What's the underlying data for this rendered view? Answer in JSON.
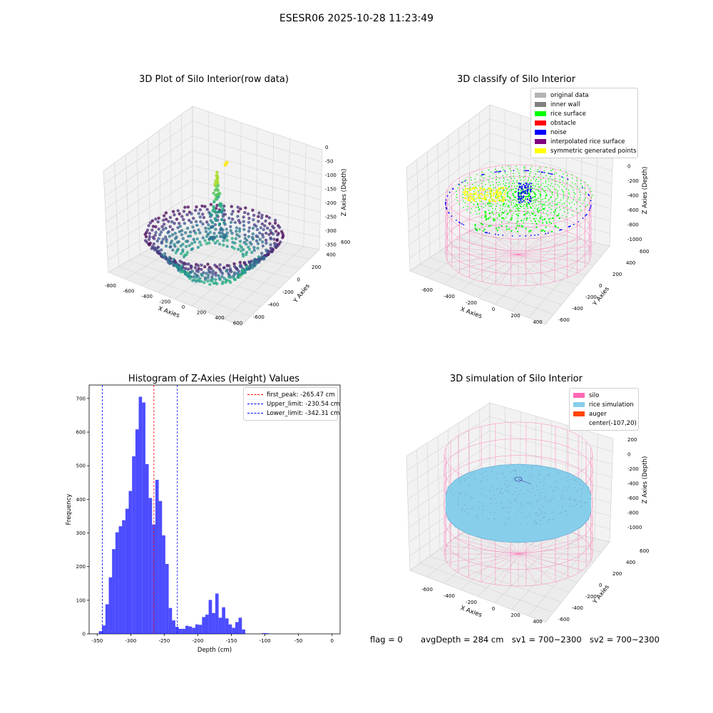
{
  "suptitle": "ESESR06 2025-10-28 11:23:49",
  "panels": {
    "raw": {
      "title": "3D Plot of Silo Interior(row data)",
      "xlabel": "X Axies",
      "ylabel": "Y Axies",
      "zlabel": "Z Axies (Depth)",
      "xticks": [
        "-800",
        "-600",
        "-400",
        "-200",
        "0",
        "200",
        "400",
        "600"
      ],
      "yticks": [
        "-600",
        "-400",
        "-200",
        "0",
        "200",
        "400",
        "600"
      ],
      "zticks": [
        "0",
        "-50",
        "-100",
        "-150",
        "-200",
        "-250",
        "-300",
        "-350"
      ]
    },
    "classify": {
      "title": "3D classify of Silo Interior",
      "xlabel": "X Axies",
      "ylabel": "Y Axies",
      "zlabel": "Z Axies (Depth)",
      "xticks": [
        "-600",
        "-400",
        "-200",
        "0",
        "200",
        "400"
      ],
      "yticks": [
        "-600",
        "-400",
        "-200",
        "0",
        "200",
        "400",
        "600"
      ],
      "zticks": [
        "200",
        "0",
        "-200",
        "-400",
        "-600",
        "-800",
        "-1000"
      ],
      "legend": [
        {
          "label": "original data",
          "color": "#b3b3b3"
        },
        {
          "label": "inner wall",
          "color": "#808080"
        },
        {
          "label": "rice surface",
          "color": "#00ff00"
        },
        {
          "label": "obstacle",
          "color": "#ff0000"
        },
        {
          "label": "noise",
          "color": "#0000ff"
        },
        {
          "label": "interpolated rice surface",
          "color": "#800080"
        },
        {
          "label": "symmetric generated points",
          "color": "#ffff00"
        }
      ]
    },
    "simulation": {
      "title": "3D simulation of Silo Interior",
      "xlabel": "X Axies",
      "ylabel": "Y Axies",
      "zlabel": "Z Axies (Depth)",
      "xticks": [
        "-600",
        "-400",
        "-200",
        "0",
        "200",
        "400"
      ],
      "yticks": [
        "-600",
        "-400",
        "-200",
        "0",
        "200",
        "400",
        "600"
      ],
      "zticks": [
        "200",
        "0",
        "-200",
        "-400",
        "-600",
        "-800",
        "-1000"
      ],
      "legend": [
        {
          "label": "silo",
          "color": "#ff69b4"
        },
        {
          "label": "rice simulation",
          "color": "#87ceeb"
        },
        {
          "label": "auger",
          "color": "#ff4500"
        },
        {
          "label": "center(-107,20)",
          "color": ""
        }
      ]
    }
  },
  "chart_data": [
    {
      "type": "bar",
      "title": "Histogram of Z-Axies (Height) Values",
      "xlabel": "Depth (cm)",
      "ylabel": "Frequency",
      "xlim": [
        -362,
        12
      ],
      "ylim": [
        0,
        740
      ],
      "xticks": [
        -350,
        -300,
        -250,
        -200,
        -150,
        -100,
        -50,
        0
      ],
      "yticks": [
        0,
        100,
        200,
        300,
        400,
        500,
        600,
        700
      ],
      "bar_color": "#0000ff",
      "bin_width": 4.96,
      "bins": [
        {
          "x": -347.6,
          "v": 8
        },
        {
          "x": -342.6,
          "v": 25
        },
        {
          "x": -337.7,
          "v": 88
        },
        {
          "x": -332.7,
          "v": 168
        },
        {
          "x": -327.8,
          "v": 252
        },
        {
          "x": -322.8,
          "v": 302
        },
        {
          "x": -317.8,
          "v": 320
        },
        {
          "x": -312.9,
          "v": 338
        },
        {
          "x": -307.9,
          "v": 372
        },
        {
          "x": -303.0,
          "v": 425
        },
        {
          "x": -298.0,
          "v": 528
        },
        {
          "x": -293.0,
          "v": 608
        },
        {
          "x": -288.1,
          "v": 705
        },
        {
          "x": -283.1,
          "v": 688
        },
        {
          "x": -278.2,
          "v": 505
        },
        {
          "x": -273.2,
          "v": 404
        },
        {
          "x": -268.2,
          "v": 325
        },
        {
          "x": -263.3,
          "v": 458
        },
        {
          "x": -258.3,
          "v": 395
        },
        {
          "x": -253.4,
          "v": 293
        },
        {
          "x": -248.4,
          "v": 208
        },
        {
          "x": -243.4,
          "v": 77
        },
        {
          "x": -238.5,
          "v": 40
        },
        {
          "x": -233.5,
          "v": 21
        },
        {
          "x": -228.6,
          "v": 15
        },
        {
          "x": -223.6,
          "v": 15
        },
        {
          "x": -218.6,
          "v": 24
        },
        {
          "x": -213.7,
          "v": 22
        },
        {
          "x": -208.7,
          "v": 18
        },
        {
          "x": -203.8,
          "v": 28
        },
        {
          "x": -198.8,
          "v": 27
        },
        {
          "x": -193.8,
          "v": 50
        },
        {
          "x": -188.9,
          "v": 57
        },
        {
          "x": -183.9,
          "v": 101
        },
        {
          "x": -179.0,
          "v": 62
        },
        {
          "x": -174.0,
          "v": 120
        },
        {
          "x": -169.0,
          "v": 48
        },
        {
          "x": -164.1,
          "v": 79
        },
        {
          "x": -159.1,
          "v": 46
        },
        {
          "x": -154.2,
          "v": 28
        },
        {
          "x": -149.2,
          "v": 18
        },
        {
          "x": -144.2,
          "v": 35
        },
        {
          "x": -139.3,
          "v": 48
        },
        {
          "x": -134.3,
          "v": 13
        },
        {
          "x": -129.4,
          "v": 0
        },
        {
          "x": -124.4,
          "v": 0
        },
        {
          "x": -119.4,
          "v": 0
        },
        {
          "x": -114.5,
          "v": 0
        },
        {
          "x": -109.5,
          "v": 0
        },
        {
          "x": -104.6,
          "v": 2
        },
        {
          "x": -99.6,
          "v": 2
        }
      ],
      "vlines": [
        {
          "x": -265.47,
          "color": "#ff0000",
          "label": "first_peak: -265.47 cm"
        },
        {
          "x": -230.54,
          "color": "#0000ff",
          "label": "Upper_limit: -230.54 cm"
        },
        {
          "x": -342.31,
          "color": "#0000ff",
          "label": "Lower_limit: -342.31 cm"
        }
      ]
    }
  ],
  "status": {
    "flag": "flag = 0",
    "avg": "avgDepth = 284 cm",
    "sv1": "sv1 = 700~2300",
    "sv2": "sv2 = 700~2300"
  }
}
